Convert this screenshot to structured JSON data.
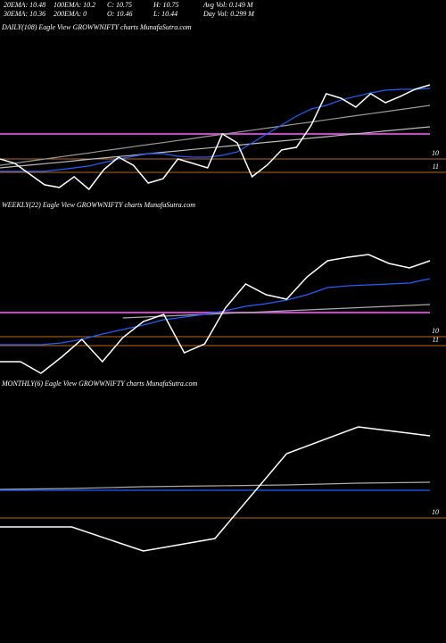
{
  "header": {
    "row1": [
      "20EMA: 10.48",
      "100EMA: 10.2",
      "C: 10.75",
      "H: 10.75",
      "Avg Vol: 0.149 M"
    ],
    "row2": [
      "30EMA: 10.36",
      "200EMA: 0",
      "O: 10.46",
      "L: 10.44",
      "Day Vol: 0.299 M"
    ]
  },
  "chart_data": [
    {
      "type": "line",
      "title": "DAILY(108) Eagle  View  GROWWNIFTY charts MunafaSutra.com",
      "categories": [
        null,
        null,
        null,
        null,
        null,
        null,
        null,
        null,
        null,
        null,
        null,
        null,
        null,
        null,
        null,
        null,
        null,
        null,
        null,
        null,
        null,
        null,
        null,
        null,
        null,
        null,
        null,
        null,
        null,
        null
      ],
      "ylim": [
        12.8,
        0.8
      ],
      "yticks": [
        10,
        11
      ],
      "tick_color": "#b8691e",
      "hlines": [
        {
          "value": 8.13,
          "color": "#d040d0"
        }
      ],
      "series": [
        {
          "color": "#999999",
          "values": [
            10.47,
            10.32,
            10.16,
            10.01,
            9.85,
            9.7,
            9.55,
            9.39,
            9.24,
            9.08,
            8.93,
            8.78,
            8.62,
            8.47,
            8.31,
            8.16,
            8.01,
            7.85,
            7.7,
            7.54,
            7.39,
            7.24,
            7.08,
            6.93,
            6.77,
            6.62,
            6.47,
            6.31,
            6.16,
            6
          ]
        },
        {
          "color": "#bbbbbb",
          "values": [
            10.67,
            10.56,
            10.46,
            10.35,
            10.25,
            10.14,
            10.03,
            9.93,
            9.82,
            9.72,
            9.61,
            9.5,
            9.4,
            9.29,
            9.19,
            9.08,
            8.97,
            8.87,
            8.76,
            8.66,
            8.55,
            8.44,
            8.34,
            8.23,
            8.13,
            8.02,
            7.91,
            7.81,
            7.7,
            7.6
          ]
        },
        {
          "color": "#1f5fff",
          "values": [
            10.93,
            10.93,
            10.93,
            10.93,
            10.8,
            10.67,
            10.53,
            10.27,
            10,
            9.8,
            9.6,
            9.6,
            9.8,
            9.87,
            9.87,
            9.73,
            9.47,
            8.8,
            8.13,
            7.47,
            6.8,
            6.27,
            6,
            5.6,
            5.33,
            5.07,
            4.87,
            4.8,
            4.8,
            4.73
          ]
        },
        {
          "color": "#ffffff",
          "values": [
            10,
            10.33,
            11.13,
            11.93,
            12.13,
            11.33,
            12.27,
            10.8,
            9.87,
            10.47,
            11.8,
            11.47,
            10,
            10.33,
            10.67,
            8.13,
            8.8,
            11.33,
            10.47,
            9.33,
            9.13,
            7.47,
            5.13,
            5.47,
            6.13,
            5.13,
            5.8,
            5.33,
            4.8,
            4.47
          ]
        }
      ]
    },
    {
      "type": "line",
      "title": "WEEKLY(22) Eagle  View  GROWWNIFTY charts MunafaSutra.com",
      "categories": [
        null,
        null,
        null,
        null,
        null,
        null,
        null,
        null,
        null,
        null,
        null,
        null,
        null,
        null,
        null,
        null,
        null,
        null,
        null,
        null,
        null,
        null
      ],
      "ylim": [
        14.3,
        -4.2
      ],
      "yticks": [
        10,
        11
      ],
      "tick_color": "#b8691e",
      "hlines": [
        {
          "value": 7.3,
          "color": "#d040d0"
        }
      ],
      "series": [
        {
          "color": "#aaaaaa",
          "values": [
            null,
            null,
            null,
            null,
            null,
            null,
            7.9,
            7.8,
            7.7,
            7.6,
            7.5,
            7.4,
            7.3,
            7.2,
            7.1,
            7.0,
            6.9,
            6.8,
            6.7,
            6.6,
            6.5,
            6.4
          ]
        },
        {
          "color": "#1f5fff",
          "values": [
            10.9,
            10.9,
            10.9,
            10.7,
            10.3,
            9.7,
            9.2,
            8.7,
            8.1,
            7.8,
            7.5,
            7.1,
            6.6,
            6.3,
            5.9,
            5.3,
            4.5,
            4.3,
            4.2,
            4.1,
            4,
            3.5
          ]
        },
        {
          "color": "#ffffff",
          "values": [
            12.8,
            12.8,
            14.1,
            12.3,
            10.3,
            12.8,
            10.1,
            8.3,
            7.5,
            11.8,
            10.8,
            6.8,
            4.1,
            5.3,
            5.8,
            3.3,
            1.5,
            1.1,
            0.8,
            1.8,
            2.3,
            1.5
          ]
        }
      ]
    },
    {
      "type": "line",
      "title": "MONTHLY(6) Eagle  View  GROWWNIFTY charts MunafaSutra.com",
      "categories": [
        null,
        null,
        null,
        null,
        null,
        null,
        null
      ],
      "ylim": [
        22,
        -4
      ],
      "yticks": [
        10
      ],
      "tick_color": "#b8691e",
      "hlines": [],
      "series": [
        {
          "color": "#aaaaaa",
          "values": [
            6.8,
            6.7,
            6.5,
            6.4,
            6.3,
            6.1,
            6.0
          ]
        },
        {
          "color": "#1f5fff",
          "values": [
            6.9,
            6.9,
            6.9,
            6.9,
            6.9,
            6.9,
            6.9
          ]
        },
        {
          "color": "#ffffff",
          "values": [
            11,
            11,
            13.7,
            12.3,
            2.8,
            -0.2,
            0.8
          ]
        }
      ]
    }
  ]
}
